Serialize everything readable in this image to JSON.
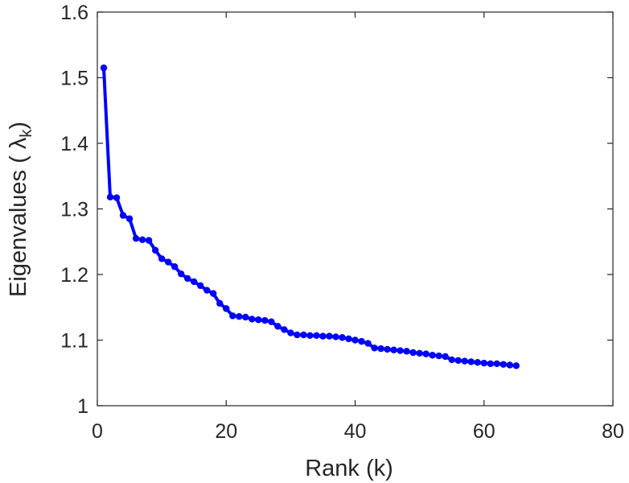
{
  "chart_data": {
    "type": "line",
    "xlabel": "Rank (k)",
    "ylabel": "Eigenvalues (  λ",
    "ylabel_sub": "k",
    "ylabel_close": ")",
    "xlim": [
      0,
      80
    ],
    "ylim": [
      1,
      1.6
    ],
    "xticks": [
      0,
      20,
      40,
      60,
      80
    ],
    "yticks": [
      1,
      1.1,
      1.2,
      1.3,
      1.4,
      1.5,
      1.6
    ],
    "xtick_labels": [
      "0",
      "20",
      "40",
      "60",
      "80"
    ],
    "ytick_labels": [
      "1",
      "1.1",
      "1.2",
      "1.3",
      "1.4",
      "1.5",
      "1.6"
    ],
    "grid": false,
    "series": [
      {
        "color": "#0000ff",
        "marker": "circle",
        "x": [
          1,
          2,
          3,
          4,
          5,
          6,
          7,
          8,
          9,
          10,
          11,
          12,
          13,
          14,
          15,
          16,
          17,
          18,
          19,
          20,
          21,
          22,
          23,
          24,
          25,
          26,
          27,
          28,
          29,
          30,
          31,
          32,
          33,
          34,
          35,
          36,
          37,
          38,
          39,
          40,
          41,
          42,
          43,
          44,
          45,
          46,
          47,
          48,
          49,
          50,
          51,
          52,
          53,
          54,
          55,
          56,
          57,
          58,
          59,
          60,
          61,
          62,
          63,
          64,
          65
        ],
        "y": [
          1.515,
          1.318,
          1.317,
          1.29,
          1.285,
          1.255,
          1.253,
          1.252,
          1.237,
          1.224,
          1.219,
          1.212,
          1.201,
          1.194,
          1.189,
          1.183,
          1.176,
          1.171,
          1.156,
          1.148,
          1.137,
          1.136,
          1.135,
          1.132,
          1.131,
          1.13,
          1.128,
          1.121,
          1.116,
          1.111,
          1.108,
          1.108,
          1.107,
          1.107,
          1.106,
          1.106,
          1.105,
          1.104,
          1.102,
          1.1,
          1.098,
          1.095,
          1.088,
          1.087,
          1.086,
          1.085,
          1.084,
          1.083,
          1.081,
          1.08,
          1.079,
          1.077,
          1.076,
          1.075,
          1.07,
          1.069,
          1.068,
          1.067,
          1.066,
          1.065,
          1.064,
          1.064,
          1.063,
          1.062,
          1.061
        ]
      }
    ]
  }
}
